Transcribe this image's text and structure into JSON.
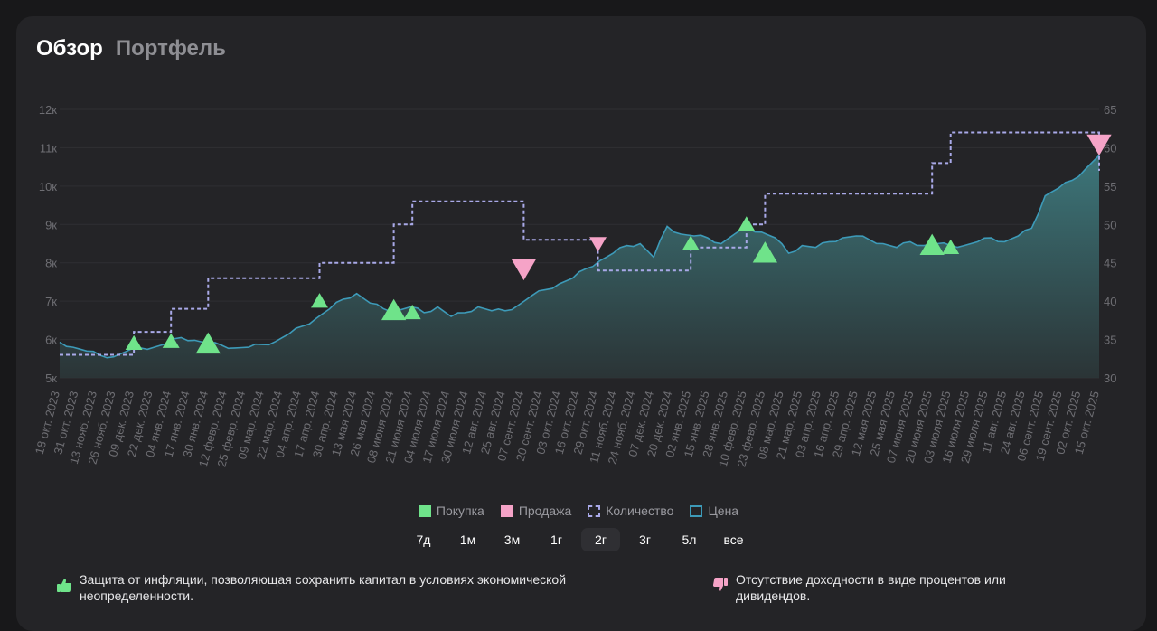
{
  "tabs": [
    {
      "label": "Обзор",
      "active": true
    },
    {
      "label": "Портфель",
      "active": false
    }
  ],
  "legend": {
    "buy": "Покупка",
    "sell": "Продажа",
    "quantity": "Количество",
    "price": "Цена"
  },
  "colors": {
    "buy": "#6fe38a",
    "sell": "#f5a3c7",
    "quantity": "#a9a9e8",
    "price": "#3d9ab8",
    "area_top": "#3b6f73",
    "area_bottom": "#2a3a3c"
  },
  "periods": [
    {
      "label": "7д",
      "active": false
    },
    {
      "label": "1м",
      "active": false
    },
    {
      "label": "3м",
      "active": false
    },
    {
      "label": "1г",
      "active": false
    },
    {
      "label": "2г",
      "active": true
    },
    {
      "label": "3г",
      "active": false
    },
    {
      "label": "5л",
      "active": false
    },
    {
      "label": "все",
      "active": false
    }
  ],
  "pros": {
    "text": "Защита от инфляции, позволяющая сохранить капитал в условиях экономической неопределенности.",
    "icon": "thumb-up-icon"
  },
  "cons": {
    "text": "Отсутствие доходности в виде процентов или дивидендов.",
    "icon": "thumb-down-icon"
  },
  "chart_data": {
    "type": "line",
    "x_tick_labels": [
      "18 окт. 2023",
      "31 окт. 2023",
      "13 нояб. 2023",
      "26 нояб. 2023",
      "09 дек. 2023",
      "22 дек. 2023",
      "04 янв. 2024",
      "17 янв. 2024",
      "30 янв. 2024",
      "12 февр. 2024",
      "25 февр. 2024",
      "09 мар. 2024",
      "22 мар. 2024",
      "04 апр. 2024",
      "17 апр. 2024",
      "30 апр. 2024",
      "13 мая 2024",
      "26 мая 2024",
      "08 июня 2024",
      "21 июня 2024",
      "04 июля 2024",
      "17 июля 2024",
      "30 июля 2024",
      "12 авг. 2024",
      "25 авг. 2024",
      "07 сент. 2024",
      "20 сент. 2024",
      "03 окт. 2024",
      "16 окт. 2024",
      "29 окт. 2024",
      "11 нояб. 2024",
      "24 нояб. 2024",
      "07 дек. 2024",
      "20 дек. 2024",
      "02 янв. 2025",
      "15 янв. 2025",
      "28 янв. 2025",
      "10 февр. 2025",
      "23 февр. 2025",
      "08 мар. 2025",
      "21 мар. 2025",
      "03 апр. 2025",
      "16 апр. 2025",
      "29 апр. 2025",
      "12 мая 2025",
      "25 мая 2025",
      "07 июня 2025",
      "20 июня 2025",
      "03 июля 2025",
      "16 июля 2025",
      "29 июля 2025",
      "11 авг. 2025",
      "24 авг. 2025",
      "06 сент. 2025",
      "19 сент. 2025",
      "02 окт. 2025",
      "15 окт. 2025"
    ],
    "y_left": {
      "ticks": [
        "5к",
        "6к",
        "7к",
        "8к",
        "9к",
        "10к",
        "11к",
        "12к"
      ],
      "min": 5000,
      "max": 12000
    },
    "y_right": {
      "ticks": [
        "30",
        "35",
        "40",
        "45",
        "50",
        "55",
        "60",
        "65"
      ],
      "min": 30,
      "max": 65
    },
    "series": [
      {
        "name": "Цена",
        "axis": "left",
        "type": "area",
        "values": [
          5930,
          5800,
          5700,
          5590,
          5550,
          5700,
          5780,
          5800,
          5900,
          6050,
          5980,
          5900,
          5850,
          5780,
          5800,
          5870,
          5950,
          6150,
          6350,
          6550,
          6800,
          7050,
          7200,
          6950,
          6800,
          6750,
          6850,
          6700,
          6850,
          6600,
          6700,
          6850,
          6750,
          6750,
          6900,
          7150,
          7300,
          7450,
          7600,
          7850,
          8050,
          8250,
          8450,
          8500,
          8150,
          8950,
          8750,
          8700,
          8650,
          8500,
          8750,
          8900,
          8800,
          8650,
          8250,
          8450,
          8400,
          8550,
          8650,
          8700,
          8600,
          8500,
          8400,
          8550,
          8450,
          8500,
          8450,
          8450,
          8550,
          8650,
          8550,
          8700,
          8900,
          9750,
          9950,
          10150,
          10450,
          10800
        ]
      },
      {
        "name": "Количество",
        "axis": "right",
        "type": "step",
        "points": [
          [
            "18 окт. 2023",
            33
          ],
          [
            "09 дек. 2023",
            33
          ],
          [
            "09 дек. 2023",
            36
          ],
          [
            "04 янв. 2024",
            36
          ],
          [
            "04 янв. 2024",
            39
          ],
          [
            "30 янв. 2024",
            39
          ],
          [
            "30 янв. 2024",
            43
          ],
          [
            "17 апр. 2024",
            43
          ],
          [
            "17 апр. 2024",
            45
          ],
          [
            "08 июня 2024",
            45
          ],
          [
            "08 июня 2024",
            50
          ],
          [
            "21 июня 2024",
            50
          ],
          [
            "21 июня 2024",
            53
          ],
          [
            "07 сент. 2024",
            53
          ],
          [
            "07 сент. 2024",
            48
          ],
          [
            "29 окт. 2024",
            48
          ],
          [
            "29 окт. 2024",
            44
          ],
          [
            "02 янв. 2025",
            44
          ],
          [
            "02 янв. 2025",
            47
          ],
          [
            "10 февр. 2025",
            47
          ],
          [
            "10 февр. 2025",
            50
          ],
          [
            "23 февр. 2025",
            50
          ],
          [
            "23 февр. 2025",
            54
          ],
          [
            "20 июня 2025",
            54
          ],
          [
            "20 июня 2025",
            58
          ],
          [
            "03 июля 2025",
            58
          ],
          [
            "03 июля 2025",
            62
          ],
          [
            "15 окт. 2025",
            62
          ],
          [
            "15 окт. 2025",
            57
          ]
        ]
      }
    ],
    "markers": [
      {
        "type": "buy",
        "date": "09 дек. 2023",
        "y": 5900,
        "size": "small"
      },
      {
        "type": "buy",
        "date": "04 янв. 2024",
        "y": 5950,
        "size": "small"
      },
      {
        "type": "buy",
        "date": "30 янв. 2024",
        "y": 5880,
        "size": "large"
      },
      {
        "type": "buy",
        "date": "17 апр. 2024",
        "y": 7000,
        "size": "small"
      },
      {
        "type": "buy",
        "date": "08 июня 2024",
        "y": 6750,
        "size": "large"
      },
      {
        "type": "buy",
        "date": "21 июня 2024",
        "y": 6700,
        "size": "small"
      },
      {
        "type": "sell",
        "date": "07 сент. 2024",
        "y": 7850,
        "size": "large"
      },
      {
        "type": "sell",
        "date": "29 окт. 2024",
        "y": 8500,
        "size": "small"
      },
      {
        "type": "buy",
        "date": "02 янв. 2025",
        "y": 8500,
        "size": "small"
      },
      {
        "type": "buy",
        "date": "10 февр. 2025",
        "y": 9000,
        "size": "small"
      },
      {
        "type": "buy",
        "date": "23 февр. 2025",
        "y": 8250,
        "size": "large"
      },
      {
        "type": "buy",
        "date": "20 июня 2025",
        "y": 8450,
        "size": "large"
      },
      {
        "type": "buy",
        "date": "03 июля 2025",
        "y": 8400,
        "size": "small"
      },
      {
        "type": "sell",
        "date": "15 окт. 2025",
        "y": 11100,
        "size": "large"
      }
    ],
    "grid": true,
    "legend_position": "bottom"
  }
}
